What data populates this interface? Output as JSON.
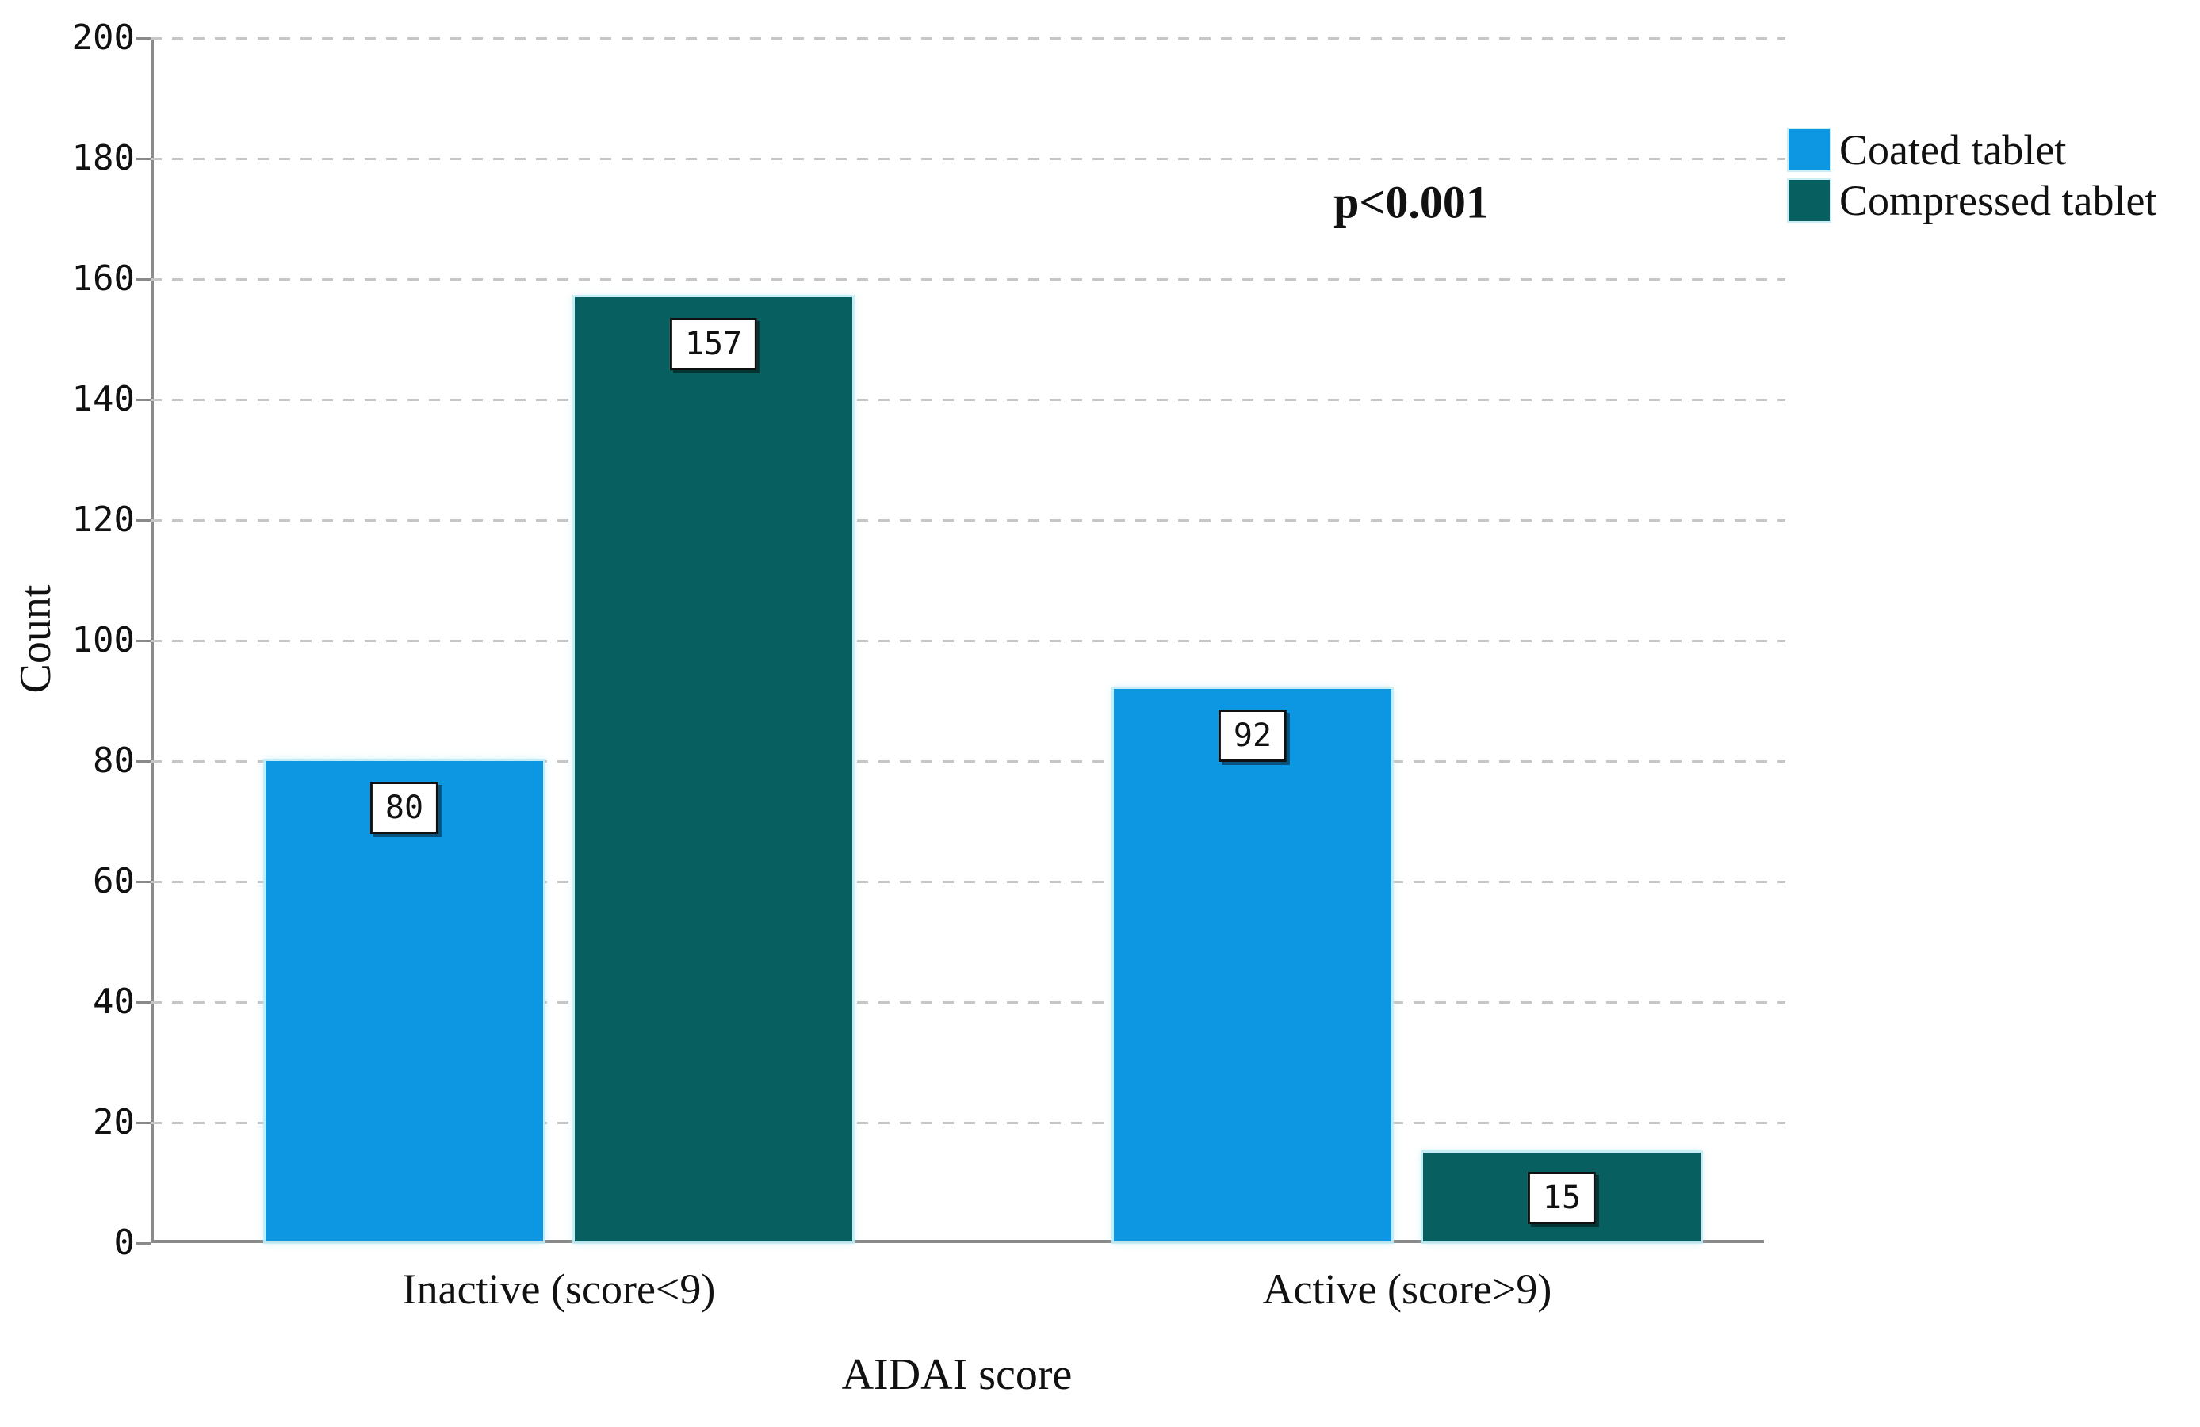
{
  "colors": {
    "bar_blue": "#0d97e3",
    "bar_teal": "#07605f",
    "axis": "#8a8a8a",
    "gridline": "#c6c6c6",
    "text": "#111111",
    "value_box_border": "#101010"
  },
  "annotation": {
    "p_value_text": "p<0.001"
  },
  "chart_data": {
    "type": "bar",
    "title": "",
    "xlabel": "AIDAI score",
    "ylabel": "Count",
    "ylim": [
      0,
      200
    ],
    "ytick_step": 20,
    "ytick_labels": [
      "0",
      "20",
      "40",
      "60",
      "80",
      "100",
      "120",
      "140",
      "160",
      "180",
      "200"
    ],
    "categories": [
      "Inactive (score<9)",
      "Active (score>9)"
    ],
    "series": [
      {
        "name": "Coated tablet",
        "color": "#0d97e3",
        "values": [
          80,
          92
        ]
      },
      {
        "name": "Compressed tablet",
        "color": "#07605f",
        "values": [
          157,
          15
        ]
      }
    ],
    "value_labels_shown": true,
    "value_labels": [
      [
        "80",
        "157"
      ],
      [
        "92",
        "15"
      ]
    ],
    "annotation": "p<0.001",
    "legend_position": "top-right",
    "grid": "dashed-horizontal"
  }
}
